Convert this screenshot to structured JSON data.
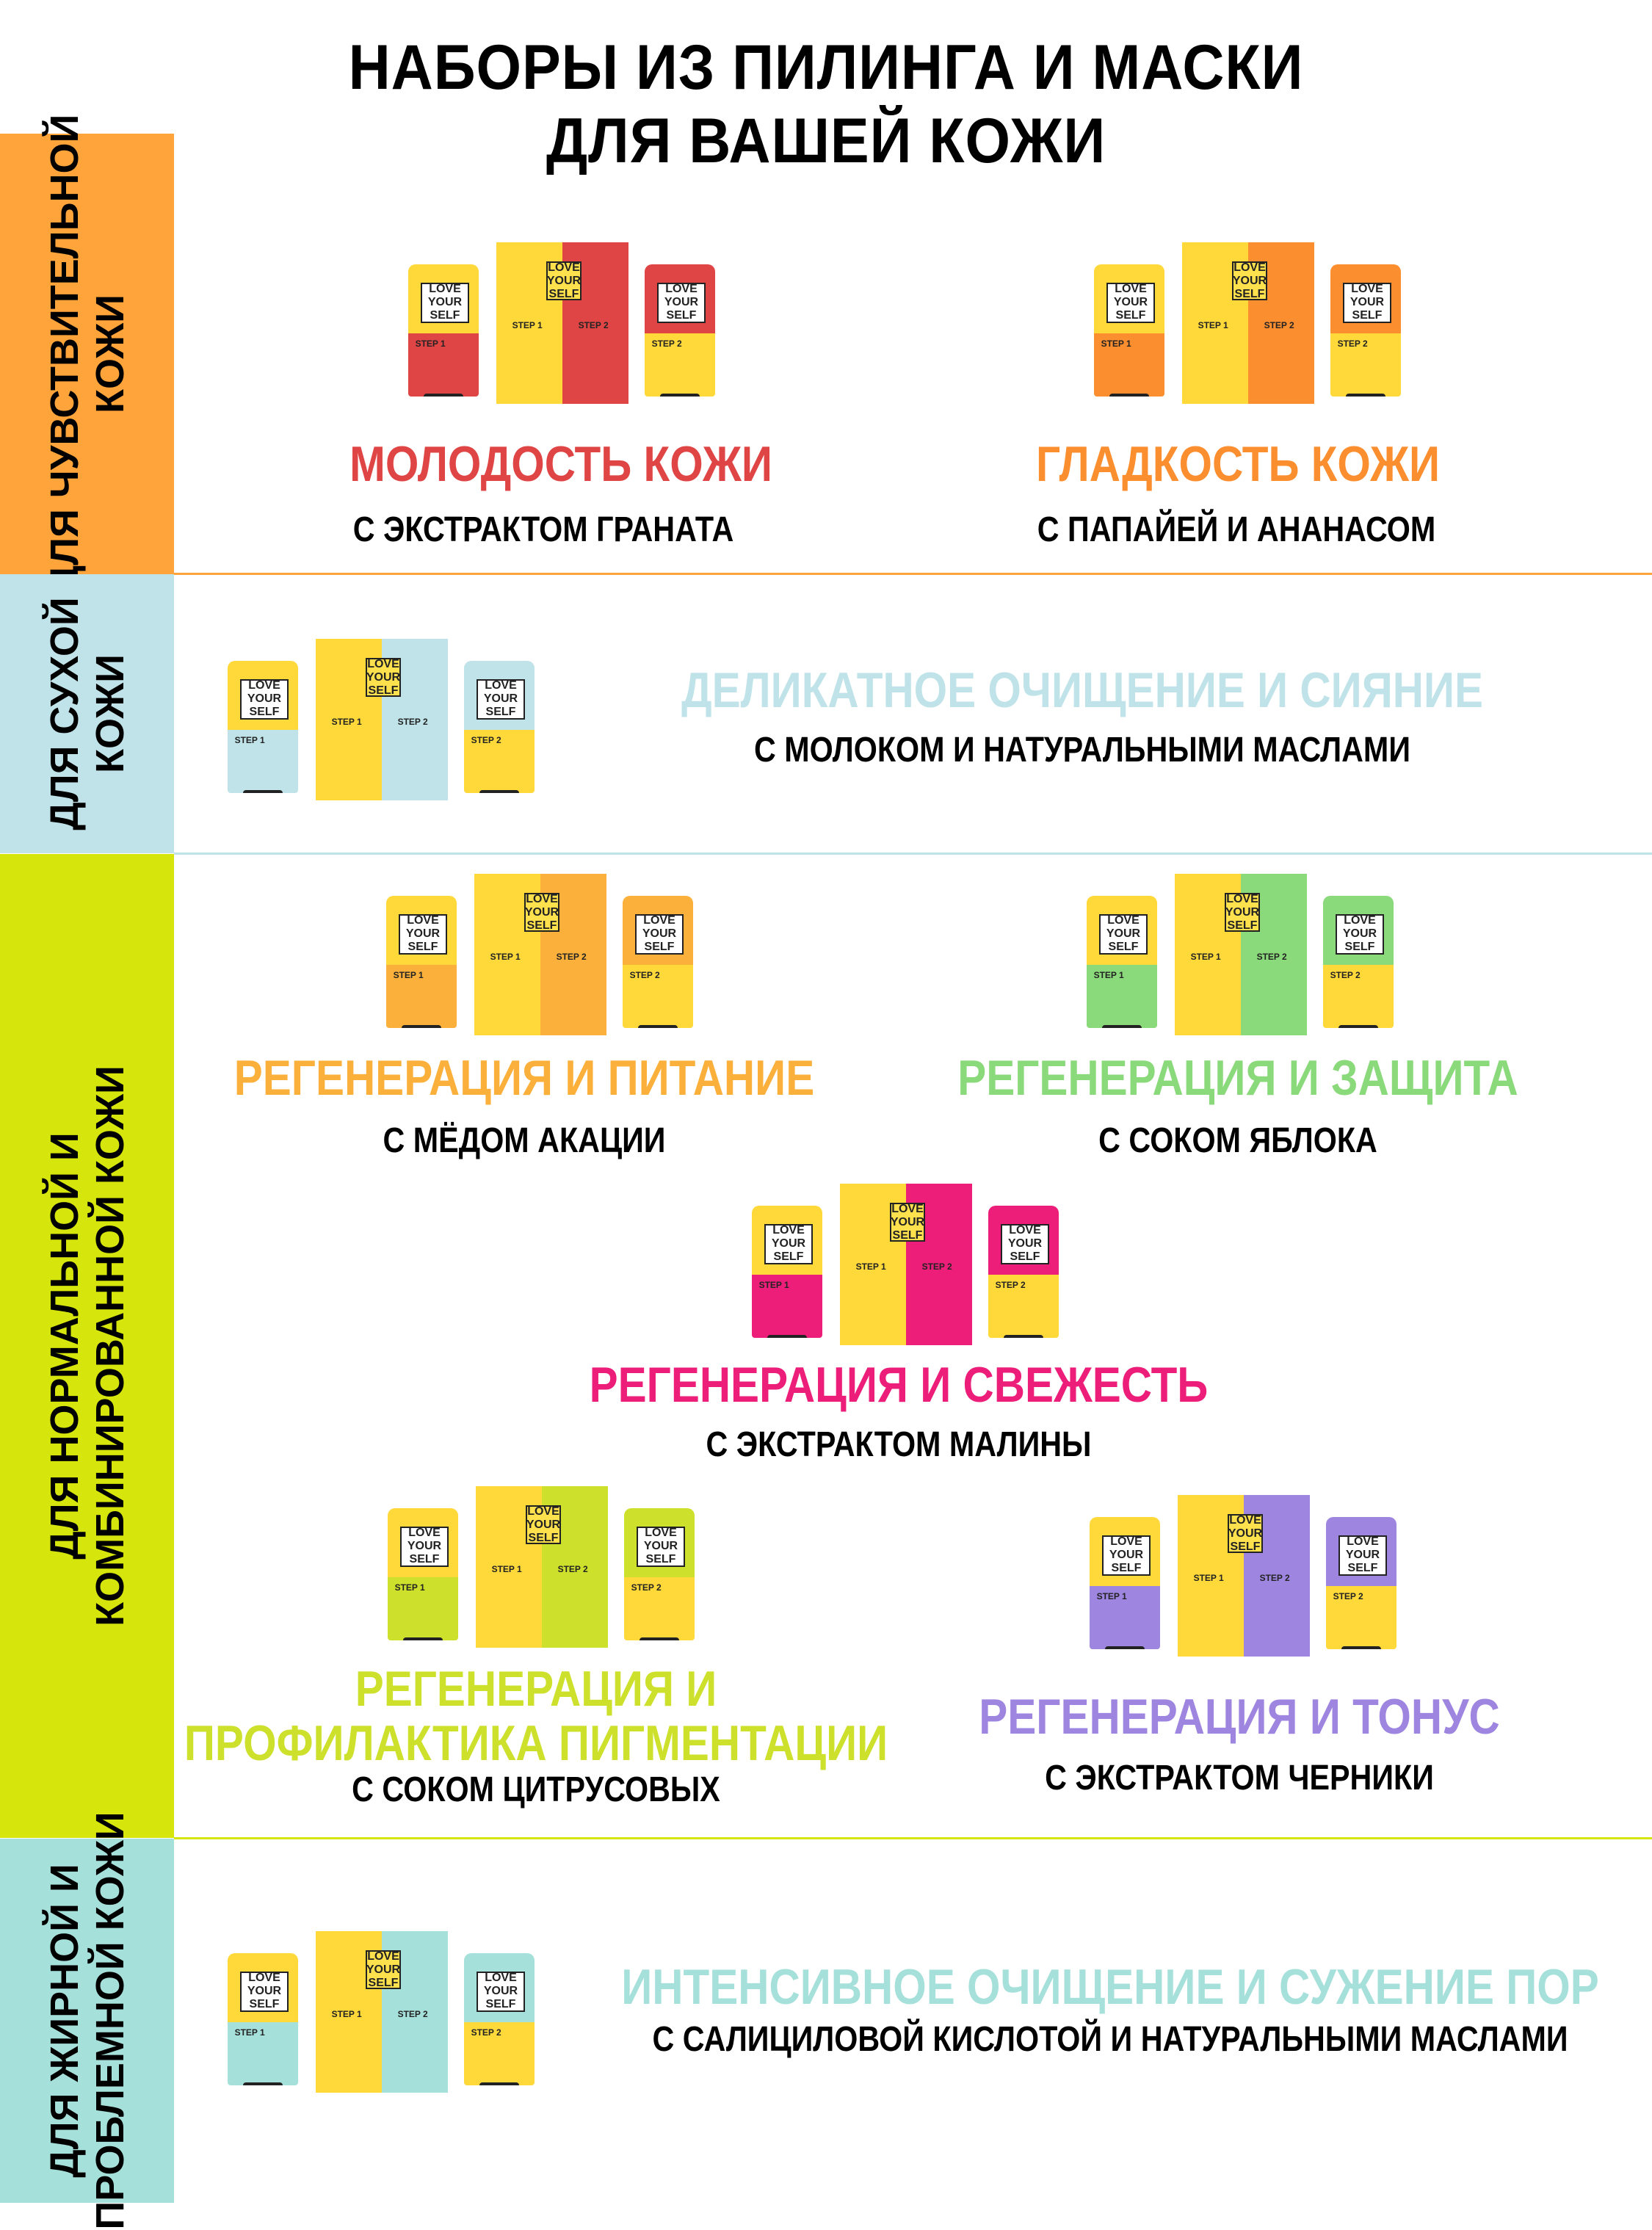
{
  "title": {
    "line1": "НАБОРЫ ИЗ ПИЛИНГА И МАСКИ",
    "line2": "ДЛЯ ВАШЕЙ КОЖИ"
  },
  "colors": {
    "sensitive": "#ffa43a",
    "dry": "#bfe3e8",
    "normal": "#d6e50b",
    "oily": "#a6e0db",
    "pomegranate": "#e04545",
    "papaya": "#fb8e2f",
    "milk": "#bfe3e8",
    "honey": "#fbb03b",
    "apple": "#8ad97a",
    "raspberry": "#ec1e79",
    "citrus": "#cde02b",
    "blueberry": "#9e85e0",
    "salicylic": "#a6e0db",
    "yellow": "#ffd83a"
  },
  "product_text": {
    "logo": "LOVE YOUR SELF",
    "step1": "STEP 1",
    "step2": "STEP 2"
  },
  "sections": [
    {
      "label": "ДЛЯ ЧУВСТВИТЕЛЬНОЙ КОЖИ",
      "label_lines": [
        "ДЛЯ ЧУВСТВИТЕЛЬНОЙ",
        "КОЖИ"
      ]
    },
    {
      "label": "ДЛЯ СУХОЙ КОЖИ",
      "label_lines": [
        "ДЛЯ СУХОЙ",
        "КОЖИ"
      ]
    },
    {
      "label": "ДЛЯ НОРМАЛЬНОЙ И КОМБИНИРОВАННОЙ КОЖИ",
      "label_lines": [
        "ДЛЯ НОРМАЛЬНОЙ И",
        "КОМБИНИРОВАННОЙ КОЖИ"
      ]
    },
    {
      "label": "ДЛЯ ЖИРНОЙ И ПРОБЛЕМНОЙ КОЖИ",
      "label_lines": [
        "ДЛЯ ЖИРНОЙ И",
        "ПРОБЛЕМНОЙ КОЖИ"
      ]
    }
  ],
  "products": [
    {
      "heading": "МОЛОДОСТЬ КОЖИ",
      "sub": "С ЭКСТРАКТОМ ГРАНАТА"
    },
    {
      "heading": "ГЛАДКОСТЬ КОЖИ",
      "sub": "С ПАПАЙЕЙ И АНАНАСОМ"
    },
    {
      "heading": "ДЕЛИКАТНОЕ ОЧИЩЕНИЕ И СИЯНИЕ",
      "sub": "С МОЛОКОМ И НАТУРАЛЬНЫМИ МАСЛАМИ"
    },
    {
      "heading": "РЕГЕНЕРАЦИЯ И ПИТАНИЕ",
      "sub": "С МЁДОМ АКАЦИИ"
    },
    {
      "heading": "РЕГЕНЕРАЦИЯ И ЗАЩИТА",
      "sub": "С СОКОМ ЯБЛОКА"
    },
    {
      "heading": "РЕГЕНЕРАЦИЯ И СВЕЖЕСТЬ",
      "sub": "С ЭКСТРАКТОМ МАЛИНЫ"
    },
    {
      "heading_line1": "РЕГЕНЕРАЦИЯ И",
      "heading_line2": "ПРОФИЛАКТИКА ПИГМЕНТАЦИИ",
      "sub": "С СОКОМ ЦИТРУСОВЫХ"
    },
    {
      "heading": "РЕГЕНЕРАЦИЯ И ТОНУС",
      "sub": "С ЭКСТРАКТОМ ЧЕРНИКИ"
    },
    {
      "heading": "ИНТЕНСИВНОЕ ОЧИЩЕНИЕ И СУЖЕНИЕ ПОР",
      "sub": "С САЛИЦИЛОВОЙ КИСЛОТОЙ И НАТУРАЛЬНЫМИ МАСЛАМИ"
    }
  ]
}
